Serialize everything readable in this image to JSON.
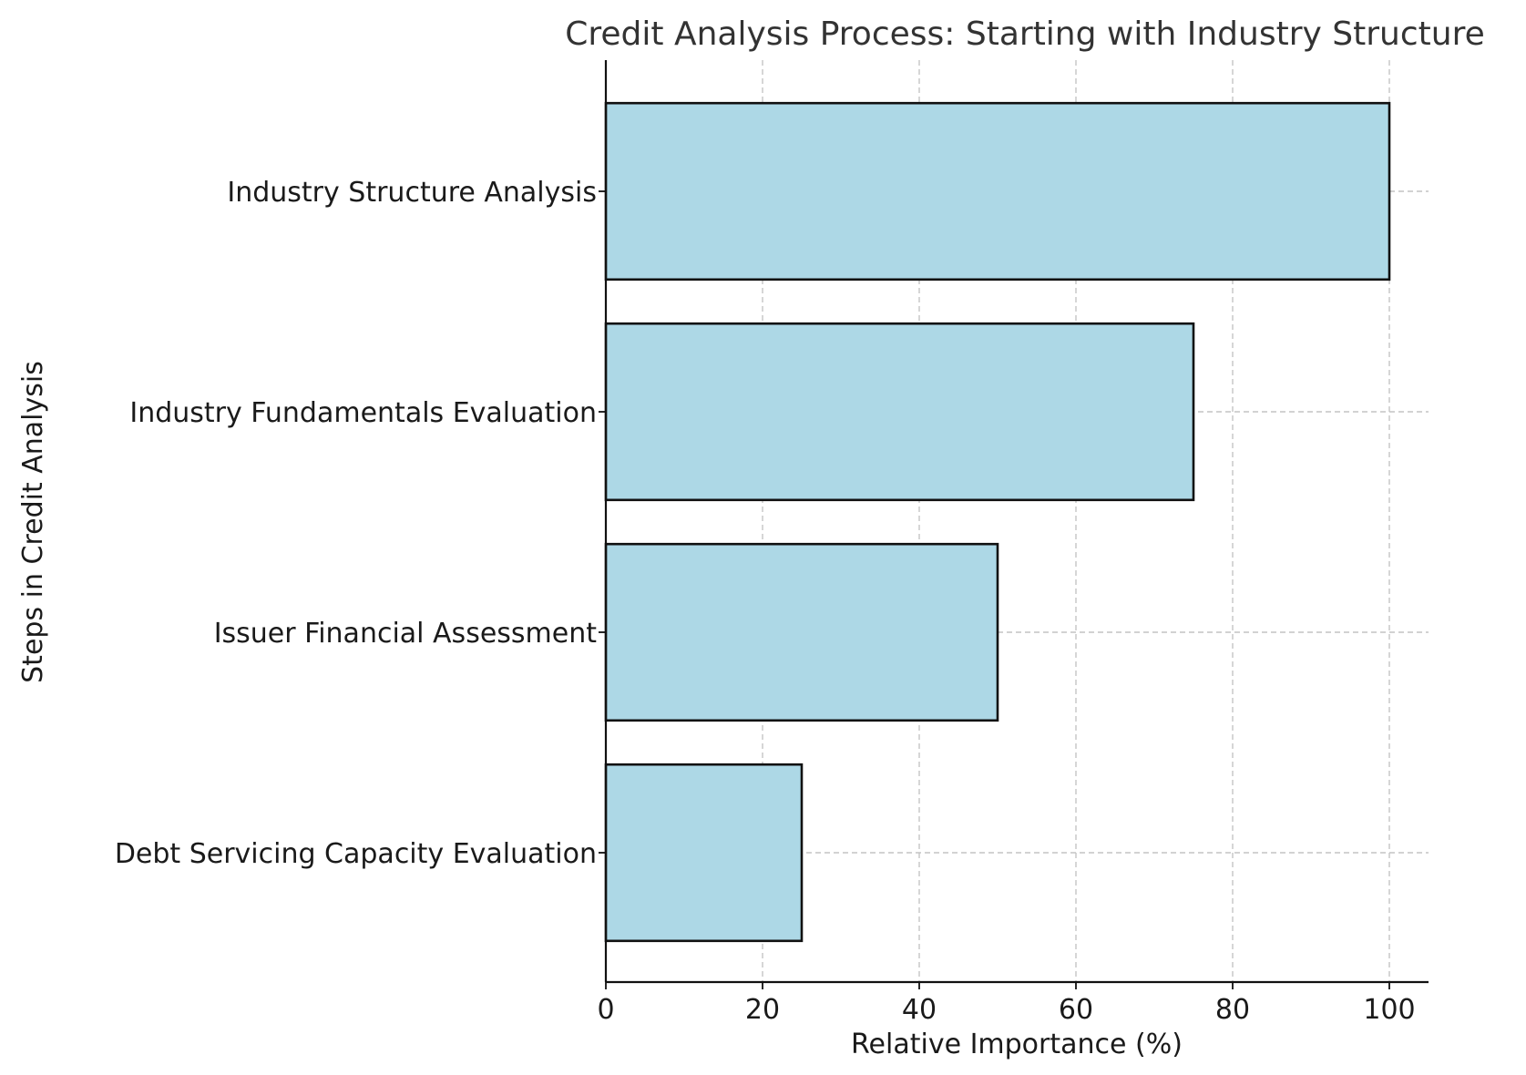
{
  "chart_data": {
    "type": "bar",
    "orientation": "horizontal",
    "title": "Credit Analysis Process: Starting with Industry Structure",
    "xlabel": "Relative Importance (%)",
    "ylabel": "Steps in Credit Analysis",
    "categories": [
      "Industry Structure Analysis",
      "Industry Fundamentals Evaluation",
      "Issuer Financial Assessment",
      "Debt Servicing Capacity Evaluation"
    ],
    "values": [
      100,
      75,
      50,
      25
    ],
    "xlim": [
      0,
      105
    ],
    "xticks": [
      0,
      20,
      40,
      60,
      80,
      100
    ],
    "grid": true,
    "colors": {
      "bar_fill": "#add8e6",
      "bar_edge": "#000000",
      "grid": "#c4c4c4"
    }
  }
}
